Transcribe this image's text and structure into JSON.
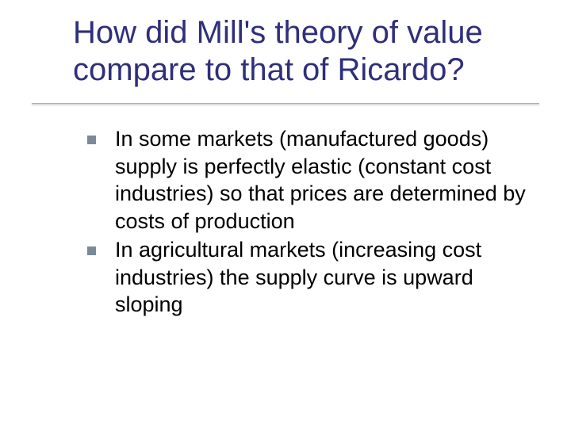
{
  "slide": {
    "title": "How did Mill's theory of value compare to that of Ricardo?",
    "title_color": "#2f2f7a",
    "title_fontsize": 40,
    "underline_color": "#b0b0b0",
    "bullet_color": "#7a8a99",
    "bullet_size": 11,
    "body_fontsize": 27,
    "body_color": "#000000",
    "background_color": "#ffffff",
    "bullets": [
      {
        "text": "In some markets (manufactured goods) supply is perfectly elastic (constant cost industries) so that prices are determined by costs of production"
      },
      {
        "text": "In agricultural markets (increasing cost industries) the supply curve is upward sloping"
      }
    ]
  }
}
